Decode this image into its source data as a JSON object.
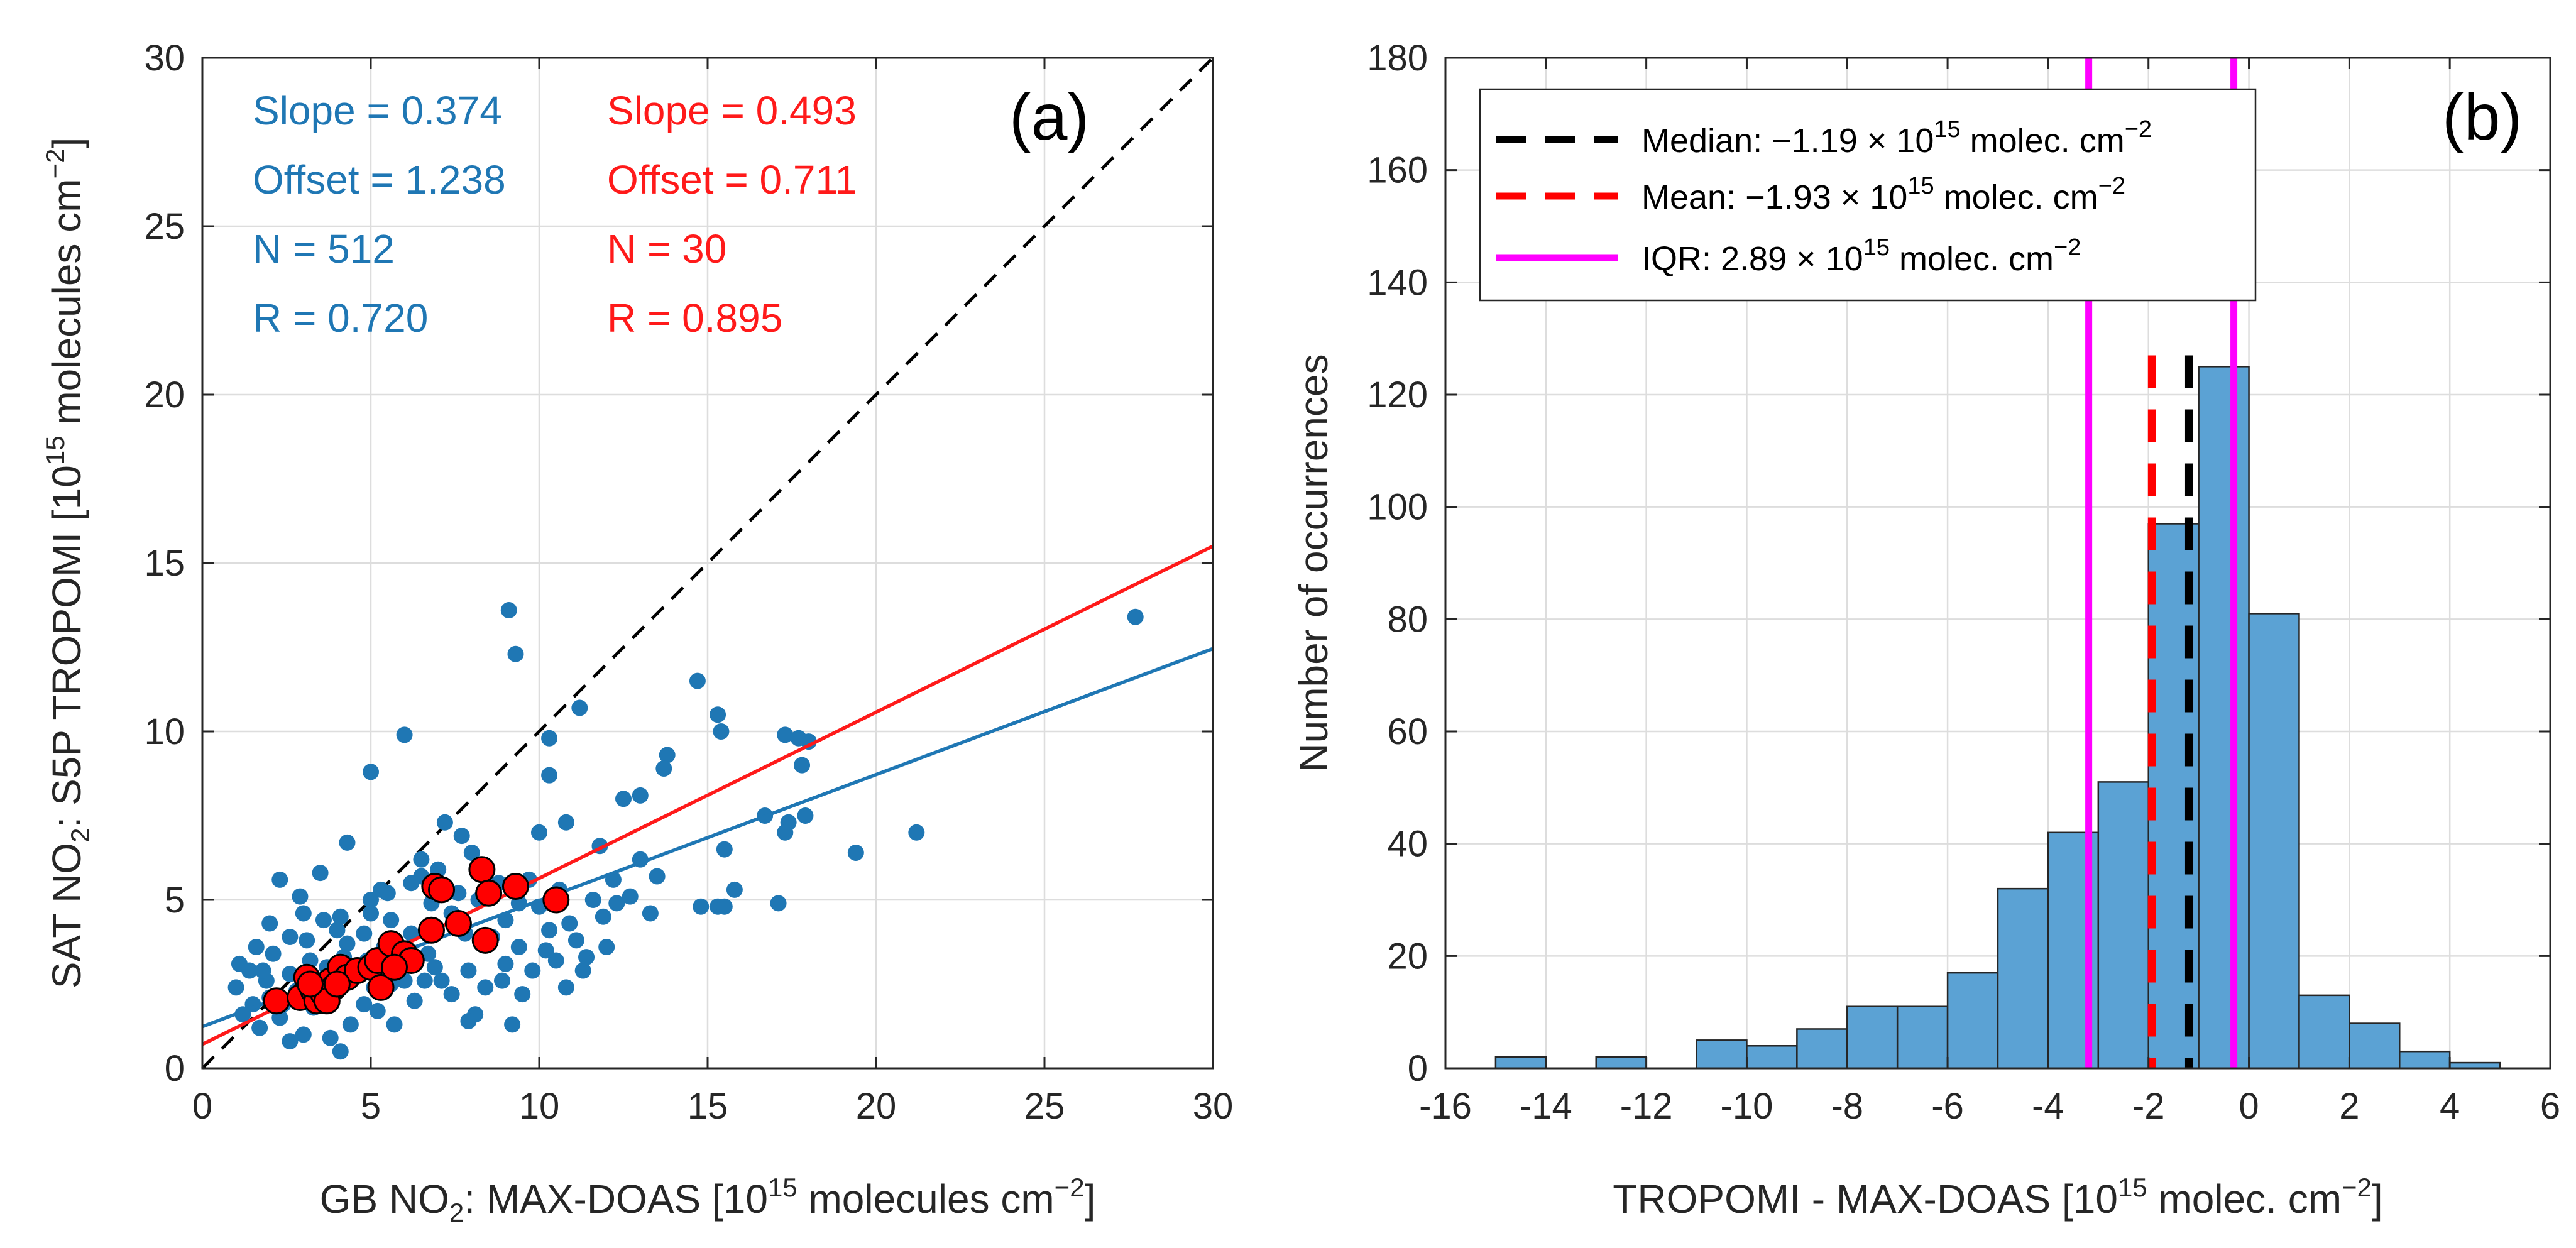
{
  "chart_data": [
    {
      "type": "scatter",
      "panel_label": "(a)",
      "xlabel": {
        "main": "GB NO",
        "sub": "2",
        "mid": ": MAX-DOAS [10",
        "sup": "15",
        "end": " molecules cm",
        "sup2": "−2",
        "close": "]"
      },
      "ylabel": {
        "main": "SAT NO",
        "sub": "2",
        "mid": ": S5P TROPOMI [10",
        "sup": "15",
        "end": " molecules cm",
        "sup2": "−2",
        "close": "]"
      },
      "xlim": [
        0,
        30
      ],
      "ylim": [
        0,
        30
      ],
      "xticks": [
        0,
        5,
        10,
        15,
        20,
        25,
        30
      ],
      "yticks": [
        0,
        5,
        10,
        15,
        20,
        25,
        30
      ],
      "grid": true,
      "one_to_one_line": true,
      "colors": {
        "blue": "#1f77b4",
        "red": "#ff1a1a",
        "red_marker": "#ff0000"
      },
      "series": [
        {
          "name": "all",
          "color": "#1f77b4",
          "stats": {
            "slope": "Slope = 0.374",
            "offset": "Offset = 1.238",
            "n": "N = 512",
            "r": "R = 0.720"
          },
          "fit": {
            "slope": 0.374,
            "offset": 1.238
          },
          "points": [
            [
              27.7,
              13.4
            ],
            [
              9.1,
              13.6
            ],
            [
              9.3,
              12.3
            ],
            [
              14.7,
              11.5
            ],
            [
              15.3,
              10.5
            ],
            [
              11.2,
              10.7
            ],
            [
              6.0,
              9.9
            ],
            [
              10.3,
              9.8
            ],
            [
              15.4,
              10.0
            ],
            [
              17.3,
              9.9
            ],
            [
              17.7,
              9.8
            ],
            [
              18.0,
              9.7
            ],
            [
              13.8,
              9.3
            ],
            [
              17.8,
              9.0
            ],
            [
              13.7,
              8.9
            ],
            [
              5.0,
              8.8
            ],
            [
              10.3,
              8.7
            ],
            [
              12.5,
              8.0
            ],
            [
              13.0,
              8.1
            ],
            [
              16.7,
              7.5
            ],
            [
              17.4,
              7.3
            ],
            [
              17.9,
              7.5
            ],
            [
              19.4,
              6.4
            ],
            [
              21.2,
              7.0
            ],
            [
              17.3,
              7.0
            ],
            [
              10.8,
              7.3
            ],
            [
              10.0,
              7.0
            ],
            [
              11.8,
              6.6
            ],
            [
              13.0,
              6.2
            ],
            [
              15.5,
              6.5
            ],
            [
              15.8,
              5.3
            ],
            [
              13.5,
              5.7
            ],
            [
              14.8,
              4.8
            ],
            [
              15.3,
              4.8
            ],
            [
              15.5,
              4.8
            ],
            [
              17.1,
              4.9
            ],
            [
              12.2,
              5.6
            ],
            [
              10.9,
              4.3
            ],
            [
              12.3,
              4.9
            ],
            [
              4.3,
              6.7
            ],
            [
              6.5,
              6.2
            ],
            [
              7.2,
              7.3
            ],
            [
              7.7,
              6.9
            ],
            [
              8.0,
              6.4
            ],
            [
              6.5,
              5.7
            ],
            [
              5.3,
              5.3
            ],
            [
              5.0,
              5.0
            ],
            [
              6.9,
              5.4
            ],
            [
              7.6,
              5.2
            ],
            [
              8.8,
              5.5
            ],
            [
              9.4,
              4.9
            ],
            [
              10.0,
              4.8
            ],
            [
              11.1,
              3.8
            ],
            [
              10.5,
              3.2
            ],
            [
              11.3,
              2.9
            ],
            [
              10.8,
              2.4
            ],
            [
              9.8,
              2.9
            ],
            [
              9.0,
              3.1
            ],
            [
              9.5,
              2.2
            ],
            [
              9.2,
              1.3
            ],
            [
              8.1,
              1.6
            ],
            [
              7.9,
              1.4
            ],
            [
              8.4,
              2.4
            ],
            [
              6.9,
              3.0
            ],
            [
              7.4,
              2.2
            ],
            [
              6.6,
              2.6
            ],
            [
              6.0,
              2.6
            ],
            [
              5.6,
              2.5
            ],
            [
              5.2,
              1.7
            ],
            [
              5.7,
              1.3
            ],
            [
              4.8,
              1.9
            ],
            [
              4.4,
              1.3
            ],
            [
              3.8,
              0.9
            ],
            [
              4.1,
              0.5
            ],
            [
              3.0,
              1.0
            ],
            [
              2.6,
              0.8
            ],
            [
              2.3,
              1.5
            ],
            [
              1.7,
              1.2
            ],
            [
              1.2,
              1.6
            ],
            [
              1.0,
              2.4
            ],
            [
              1.1,
              3.1
            ],
            [
              1.4,
              2.9
            ],
            [
              1.9,
              2.6
            ],
            [
              2.1,
              3.4
            ],
            [
              2.6,
              3.9
            ],
            [
              2.0,
              4.3
            ],
            [
              1.6,
              3.6
            ],
            [
              2.3,
              5.6
            ],
            [
              2.9,
              5.1
            ],
            [
              3.5,
              5.8
            ],
            [
              3.0,
              4.6
            ],
            [
              3.6,
              4.4
            ],
            [
              4.1,
              4.5
            ],
            [
              4.3,
              3.7
            ],
            [
              4.8,
              4.0
            ],
            [
              5.6,
              4.4
            ],
            [
              6.2,
              4.0
            ],
            [
              6.7,
              3.4
            ],
            [
              7.4,
              4.6
            ],
            [
              7.8,
              4.0
            ],
            [
              8.6,
              3.9
            ],
            [
              9.4,
              3.6
            ],
            [
              10.3,
              4.1
            ],
            [
              11.4,
              3.3
            ],
            [
              12.0,
              3.6
            ],
            [
              3.2,
              3.2
            ],
            [
              3.7,
              3.0
            ],
            [
              4.6,
              2.8
            ],
            [
              5.1,
              2.4
            ],
            [
              2.6,
              2.8
            ],
            [
              2.0,
              2.1
            ],
            [
              1.5,
              1.9
            ],
            [
              3.3,
              1.8
            ],
            [
              3.9,
              2.2
            ],
            [
              4.9,
              3.2
            ],
            [
              5.8,
              3.0
            ],
            [
              6.3,
              2.0
            ],
            [
              7.1,
              2.6
            ],
            [
              7.9,
              2.9
            ],
            [
              8.9,
              2.6
            ],
            [
              2.8,
              2.3
            ],
            [
              3.5,
              2.6
            ],
            [
              4.2,
              3.3
            ],
            [
              5.4,
              3.6
            ],
            [
              6.0,
              3.3
            ],
            [
              2.4,
              1.9
            ],
            [
              1.8,
              2.9
            ],
            [
              3.1,
              3.8
            ],
            [
              4.0,
              4.1
            ],
            [
              5.0,
              4.6
            ],
            [
              6.8,
              4.9
            ],
            [
              7.5,
              4.5
            ],
            [
              8.2,
              5.0
            ],
            [
              9.0,
              4.4
            ],
            [
              10.6,
              5.3
            ],
            [
              9.7,
              5.6
            ],
            [
              8.4,
              5.8
            ],
            [
              7.0,
              5.9
            ],
            [
              6.2,
              5.5
            ],
            [
              5.5,
              5.2
            ],
            [
              11.6,
              5.0
            ],
            [
              12.7,
              5.1
            ],
            [
              13.3,
              4.6
            ],
            [
              11.9,
              4.5
            ],
            [
              10.2,
              3.5
            ]
          ]
        },
        {
          "name": "subset",
          "color": "#ff1a1a",
          "stats": {
            "slope": "Slope = 0.493",
            "offset": "Offset = 0.711",
            "n": "N = 30",
            "r": "R = 0.895"
          },
          "fit": {
            "slope": 0.493,
            "offset": 0.711
          },
          "points": [
            [
              2.2,
              2.0
            ],
            [
              2.9,
              2.1
            ],
            [
              3.1,
              2.7
            ],
            [
              3.3,
              2.3
            ],
            [
              3.4,
              2.0
            ],
            [
              3.6,
              2.2
            ],
            [
              3.8,
              2.6
            ],
            [
              3.9,
              2.4
            ],
            [
              4.1,
              3.0
            ],
            [
              4.3,
              2.7
            ],
            [
              4.6,
              2.9
            ],
            [
              5.0,
              3.0
            ],
            [
              5.2,
              3.2
            ],
            [
              5.3,
              2.4
            ],
            [
              5.6,
              3.7
            ],
            [
              6.0,
              3.4
            ],
            [
              6.2,
              3.2
            ],
            [
              6.8,
              4.1
            ],
            [
              6.9,
              5.4
            ],
            [
              7.1,
              5.3
            ],
            [
              7.6,
              4.3
            ],
            [
              8.3,
              5.9
            ],
            [
              8.5,
              5.2
            ],
            [
              8.4,
              3.8
            ],
            [
              9.3,
              5.4
            ],
            [
              10.5,
              5.0
            ],
            [
              3.7,
              2.0
            ],
            [
              4.0,
              2.5
            ],
            [
              3.2,
              2.5
            ],
            [
              5.7,
              3.0
            ]
          ]
        }
      ]
    },
    {
      "type": "histogram",
      "panel_label": "(b)",
      "xlabel": {
        "main": "TROPOMI - MAX-DOAS [10",
        "sup": "15",
        "end": " molec. cm",
        "sup2": "−2",
        "close": "]"
      },
      "ylabel": "Number of occurrences",
      "xlim": [
        -16,
        6
      ],
      "ylim": [
        0,
        180
      ],
      "xticks": [
        -16,
        -14,
        -12,
        -10,
        -8,
        -6,
        -4,
        -2,
        0,
        2,
        4,
        6
      ],
      "xtick_labels": [
        "-16",
        "-14",
        "-12",
        "-10",
        "-8",
        "-6",
        "-4",
        "-2",
        "0",
        "2",
        "4",
        "6"
      ],
      "yticks": [
        0,
        20,
        40,
        60,
        80,
        100,
        120,
        140,
        160,
        180
      ],
      "grid": true,
      "bar_color": "#5ba2d4",
      "bins": [
        {
          "left": -15,
          "right": -14,
          "count": 2
        },
        {
          "left": -14,
          "right": -13,
          "count": 0
        },
        {
          "left": -13,
          "right": -12,
          "count": 2
        },
        {
          "left": -12,
          "right": -11,
          "count": 0
        },
        {
          "left": -11,
          "right": -10,
          "count": 5
        },
        {
          "left": -10,
          "right": -9,
          "count": 4
        },
        {
          "left": -9,
          "right": -8,
          "count": 7
        },
        {
          "left": -8,
          "right": -7,
          "count": 11
        },
        {
          "left": -7,
          "right": -6,
          "count": 11
        },
        {
          "left": -6,
          "right": -5,
          "count": 17
        },
        {
          "left": -5,
          "right": -4,
          "count": 32
        },
        {
          "left": -4,
          "right": -3,
          "count": 42
        },
        {
          "left": -3,
          "right": -2,
          "count": 51
        },
        {
          "left": -2,
          "right": -1,
          "count": 97
        },
        {
          "left": -1,
          "right": 0,
          "count": 125
        },
        {
          "left": 0,
          "right": 1,
          "count": 81
        },
        {
          "left": 1,
          "right": 2,
          "count": 13
        },
        {
          "left": 2,
          "right": 3,
          "count": 8
        },
        {
          "left": 3,
          "right": 4,
          "count": 3
        },
        {
          "left": 4,
          "right": 5,
          "count": 1
        }
      ],
      "vlines": [
        {
          "name": "median",
          "x": -1.19,
          "color": "#000000",
          "style": "dashed"
        },
        {
          "name": "mean",
          "x": -1.93,
          "color": "#ff0000",
          "style": "dashed"
        },
        {
          "name": "iqr_low",
          "x": -3.19,
          "color": "#ff00ff",
          "style": "solid"
        },
        {
          "name": "iqr_high",
          "x": -0.3,
          "color": "#ff00ff",
          "style": "solid"
        }
      ],
      "legend": {
        "position": "top-left",
        "entries": [
          {
            "color": "#000000",
            "style": "dashed",
            "pre": "Median: −1.19 × 10",
            "sup": "15",
            "post": " molec. cm",
            "sup2": "−2"
          },
          {
            "color": "#ff0000",
            "style": "dashed",
            "pre": "Mean: −1.93 × 10",
            "sup": "15",
            "post": " molec. cm",
            "sup2": "−2"
          },
          {
            "color": "#ff00ff",
            "style": "solid",
            "pre": "IQR: 2.89 × 10",
            "sup": "15",
            "post": " molec. cm",
            "sup2": "−2"
          }
        ]
      }
    }
  ]
}
